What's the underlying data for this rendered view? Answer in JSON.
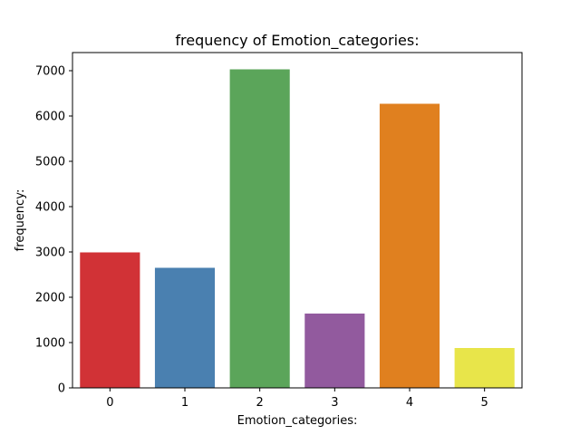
{
  "chart_data": {
    "type": "bar",
    "title": "frequency of Emotion_categories:",
    "xlabel": "Emotion_categories:",
    "ylabel": "frequency:",
    "categories": [
      "0",
      "1",
      "2",
      "3",
      "4",
      "5"
    ],
    "values": [
      2990,
      2650,
      7030,
      1640,
      6270,
      880
    ],
    "colors": [
      "#d13236",
      "#4a80b0",
      "#5ba55a",
      "#925a9e",
      "#e0801f",
      "#e8e54a"
    ],
    "ylim": [
      0,
      7400
    ],
    "yticks": [
      0,
      1000,
      2000,
      3000,
      4000,
      5000,
      6000,
      7000
    ],
    "grid": false,
    "legend": "none"
  }
}
